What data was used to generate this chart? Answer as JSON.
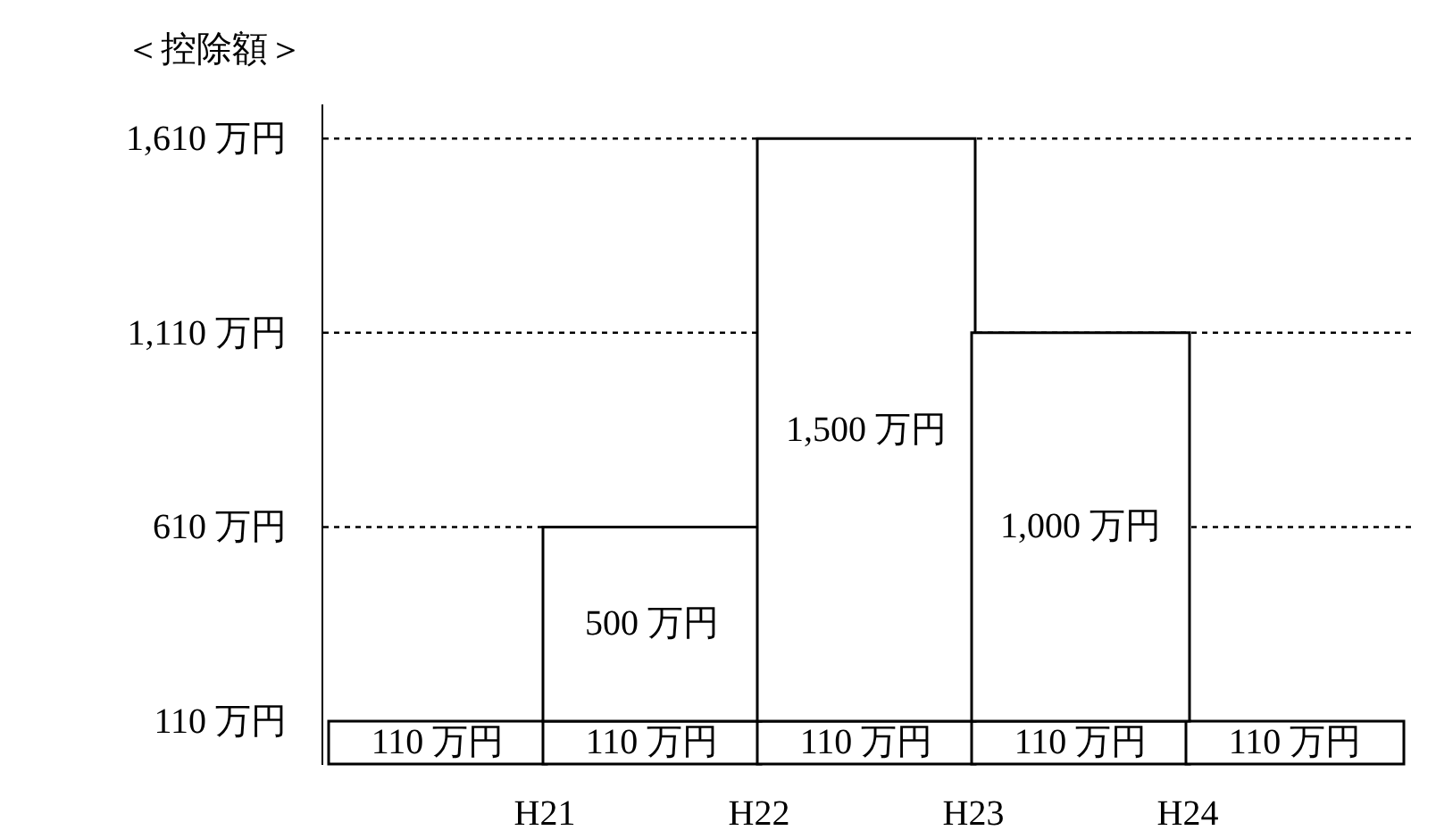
{
  "chart_data": {
    "type": "bar",
    "title": "＜控除額＞",
    "stacked": true,
    "categories": [
      null,
      null,
      null,
      null,
      null
    ],
    "annotations": [
      "H21",
      "H22",
      "H23",
      "H24"
    ],
    "ylim": [
      0,
      1700
    ],
    "yticks": [
      {
        "value": 110,
        "label": "110 万円"
      },
      {
        "value": 610,
        "label": "610 万円"
      },
      {
        "value": 1110,
        "label": "1,110 万円"
      },
      {
        "value": 1610,
        "label": "1,610 万円"
      }
    ],
    "series": [
      {
        "color": "#ffffff",
        "values": [
          110,
          110,
          110,
          110,
          110
        ],
        "value_labels": [
          "110 万円",
          "110 万円",
          "110 万円",
          "110 万円",
          "110 万円"
        ]
      },
      {
        "color": "#ffffff",
        "values": [
          null,
          500,
          1500,
          1000,
          null
        ],
        "value_labels": [
          null,
          "500 万円",
          "1,500 万円",
          "1,000 万円",
          null
        ]
      }
    ],
    "ref_lines": [
      {
        "axis": "y",
        "value": 610,
        "line_style": "dotted"
      },
      {
        "axis": "y",
        "value": 1110,
        "line_style": "dotted"
      },
      {
        "axis": "y",
        "value": 1610,
        "line_style": "dotted"
      }
    ],
    "grid": false
  }
}
